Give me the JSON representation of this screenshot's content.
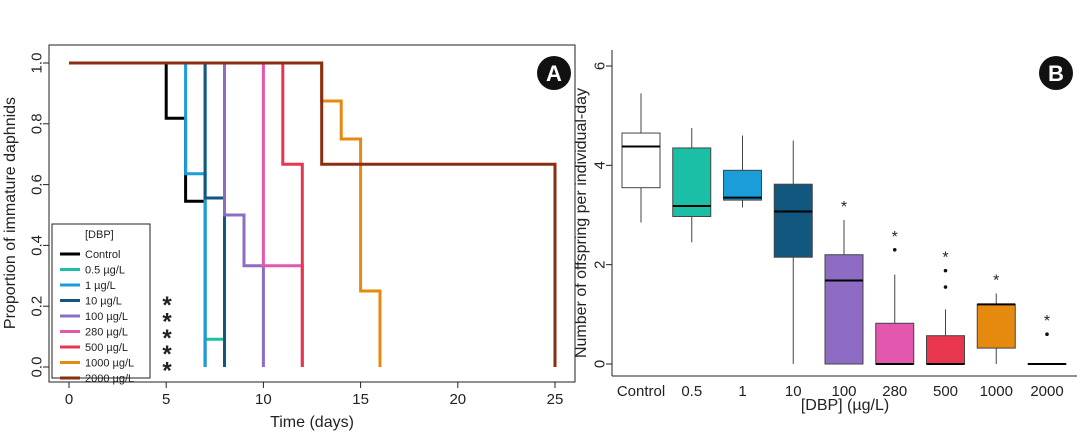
{
  "chart_data": [
    {
      "panel": "A",
      "type": "line",
      "subtype": "step (Kaplan-Meier survival)",
      "xlabel": "Time (days)",
      "ylabel": "Proportion of immature daphnids",
      "xlim": [
        0,
        25
      ],
      "ylim": [
        0,
        1
      ],
      "x_ticks": [
        "0",
        "5",
        "10",
        "15",
        "20",
        "25"
      ],
      "y_ticks": [
        "0.0",
        "0.2",
        "0.4",
        "0.6",
        "0.8",
        "1.0"
      ],
      "legend_title": "[DBP]",
      "legend_position": "bottom-left",
      "significance_markers": [
        {
          "label": "*",
          "color": "#8E6CC4"
        },
        {
          "label": "*",
          "color": "#E357AE"
        },
        {
          "label": "*",
          "color": "#E8364F"
        },
        {
          "label": "*",
          "color": "#E58A0E"
        },
        {
          "label": "*",
          "color": "#8A2E12"
        }
      ],
      "series": [
        {
          "name": "Control",
          "color": "#000000",
          "points": [
            [
              0,
              1
            ],
            [
              5,
              1
            ],
            [
              5,
              0.818
            ],
            [
              6,
              0.818
            ],
            [
              6,
              0.545
            ],
            [
              7,
              0.545
            ],
            [
              7,
              0
            ]
          ]
        },
        {
          "name": "0.5 µg/L",
          "color": "#1BBFA6",
          "points": [
            [
              0,
              1
            ],
            [
              7,
              1
            ],
            [
              7,
              0.091
            ],
            [
              8,
              0.091
            ],
            [
              8,
              0
            ]
          ]
        },
        {
          "name": "1 µg/L",
          "color": "#1A9DD9",
          "points": [
            [
              0,
              1
            ],
            [
              6,
              1
            ],
            [
              6,
              0.636
            ],
            [
              7,
              0.636
            ],
            [
              7,
              0
            ]
          ]
        },
        {
          "name": "10 µg/L",
          "color": "#12577E",
          "points": [
            [
              0,
              1
            ],
            [
              7,
              1
            ],
            [
              7,
              0.556
            ],
            [
              8,
              0.556
            ],
            [
              8,
              0
            ]
          ]
        },
        {
          "name": "100 µg/L",
          "color": "#8E6CC4",
          "points": [
            [
              0,
              1
            ],
            [
              8,
              1
            ],
            [
              8,
              0.5
            ],
            [
              9,
              0.5
            ],
            [
              9,
              0.333
            ],
            [
              10,
              0.333
            ],
            [
              10,
              0
            ]
          ]
        },
        {
          "name": "280 µg/L",
          "color": "#E357AE",
          "points": [
            [
              0,
              1
            ],
            [
              10,
              1
            ],
            [
              10,
              0.333
            ],
            [
              12,
              0.333
            ],
            [
              12,
              0
            ]
          ]
        },
        {
          "name": "500 µg/L",
          "color": "#E8364F",
          "points": [
            [
              0,
              1
            ],
            [
              11,
              1
            ],
            [
              11,
              0.667
            ],
            [
              12,
              0.667
            ],
            [
              12,
              0
            ]
          ]
        },
        {
          "name": "1000 µg/L",
          "color": "#E58A0E",
          "points": [
            [
              0,
              1
            ],
            [
              13,
              1
            ],
            [
              13,
              0.875
            ],
            [
              14,
              0.875
            ],
            [
              14,
              0.75
            ],
            [
              15,
              0.75
            ],
            [
              15,
              0.25
            ],
            [
              16,
              0.25
            ],
            [
              16,
              0
            ]
          ]
        },
        {
          "name": "2000 µg/L",
          "color": "#8A2E12",
          "points": [
            [
              0,
              1
            ],
            [
              13,
              1
            ],
            [
              13,
              0.667
            ],
            [
              25,
              0.667
            ],
            [
              25,
              0
            ]
          ]
        }
      ]
    },
    {
      "panel": "B",
      "type": "box",
      "xlabel": "[DBP] (µg/L)",
      "ylabel": "Number of offspring per individual-day",
      "ylim": [
        0,
        6
      ],
      "y_ticks": [
        "0",
        "2",
        "4",
        "6"
      ],
      "categories": [
        "Control",
        "0.5",
        "1",
        "10",
        "100",
        "280",
        "500",
        "1000",
        "2000"
      ],
      "boxes": [
        {
          "category": "Control",
          "color": "#FFFFFF",
          "whisker_low": 2.85,
          "q1": 3.55,
          "median": 4.38,
          "q3": 4.65,
          "whisker_high": 5.45,
          "outliers": [],
          "significance": ""
        },
        {
          "category": "0.5",
          "color": "#1BBFA6",
          "whisker_low": 2.45,
          "q1": 2.97,
          "median": 3.18,
          "q3": 4.35,
          "whisker_high": 4.75,
          "outliers": [],
          "significance": ""
        },
        {
          "category": "1",
          "color": "#1A9DD9",
          "whisker_low": 3.15,
          "q1": 3.3,
          "median": 3.35,
          "q3": 3.9,
          "whisker_high": 4.6,
          "outliers": [],
          "significance": ""
        },
        {
          "category": "10",
          "color": "#12577E",
          "whisker_low": 0,
          "q1": 2.15,
          "median": 3.07,
          "q3": 3.62,
          "whisker_high": 4.5,
          "outliers": [],
          "significance": ""
        },
        {
          "category": "100",
          "color": "#8E6CC4",
          "whisker_low": 0,
          "q1": 0,
          "median": 1.68,
          "q3": 2.2,
          "whisker_high": 2.9,
          "outliers": [],
          "significance": "*"
        },
        {
          "category": "280",
          "color": "#E357AE",
          "whisker_low": 0,
          "q1": 0,
          "median": 0,
          "q3": 0.82,
          "whisker_high": 1.8,
          "outliers": [
            2.3
          ],
          "significance": "*"
        },
        {
          "category": "500",
          "color": "#E8364F",
          "whisker_low": 0,
          "q1": 0,
          "median": 0,
          "q3": 0.57,
          "whisker_high": 1.1,
          "outliers": [
            1.55,
            1.88
          ],
          "significance": "*"
        },
        {
          "category": "1000",
          "color": "#E58A0E",
          "whisker_low": 0,
          "q1": 0.32,
          "median": 1.2,
          "q3": 1.2,
          "whisker_high": 1.42,
          "outliers": [],
          "significance": "*"
        },
        {
          "category": "2000",
          "color": "#8A2E12",
          "whisker_low": 0,
          "q1": 0,
          "median": 0,
          "q3": 0,
          "whisker_high": 0,
          "outliers": [
            0.6
          ],
          "significance": "*"
        }
      ]
    }
  ],
  "badges": {
    "a": "A",
    "b": "B"
  }
}
